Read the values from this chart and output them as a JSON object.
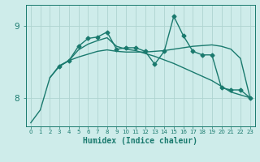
{
  "xlabel": "Humidex (Indice chaleur)",
  "x": [
    0,
    1,
    2,
    3,
    4,
    5,
    6,
    7,
    8,
    9,
    10,
    11,
    12,
    13,
    14,
    15,
    16,
    17,
    18,
    19,
    20,
    21,
    22,
    23
  ],
  "line1_y": [
    7.65,
    7.83,
    8.28,
    8.45,
    8.52,
    8.57,
    8.61,
    8.65,
    8.67,
    8.65,
    8.64,
    8.64,
    8.64,
    8.65,
    8.66,
    8.68,
    8.7,
    8.72,
    8.73,
    8.74,
    8.72,
    8.68,
    8.55,
    8.0
  ],
  "line2_x": [
    2,
    3,
    4,
    5,
    6,
    7,
    8,
    9,
    10,
    11,
    12,
    13,
    14,
    15,
    16,
    17,
    18,
    19,
    20,
    21,
    22,
    23
  ],
  "line2_y": [
    8.28,
    8.44,
    8.52,
    8.67,
    8.75,
    8.8,
    8.84,
    8.72,
    8.68,
    8.66,
    8.62,
    8.58,
    8.53,
    8.48,
    8.42,
    8.36,
    8.3,
    8.24,
    8.16,
    8.08,
    8.04,
    8.0
  ],
  "line3_x": [
    3,
    4,
    5,
    6,
    7,
    8,
    9,
    10,
    11,
    12,
    13,
    14,
    15,
    16,
    17,
    18,
    19,
    20,
    21,
    22,
    23
  ],
  "line3_y": [
    8.44,
    8.52,
    8.72,
    8.83,
    8.85,
    8.92,
    8.68,
    8.7,
    8.7,
    8.65,
    8.47,
    8.65,
    9.14,
    8.87,
    8.65,
    8.6,
    8.6,
    8.14,
    8.11,
    8.11,
    8.0
  ],
  "line_color": "#1a7a6e",
  "bg_color": "#ceecea",
  "grid_color": "#aed4d0",
  "ylim": [
    7.6,
    9.3
  ],
  "yticks": [
    8.0,
    9.0
  ],
  "marker": "D",
  "marker_size": 2.5,
  "linewidth": 1.0
}
